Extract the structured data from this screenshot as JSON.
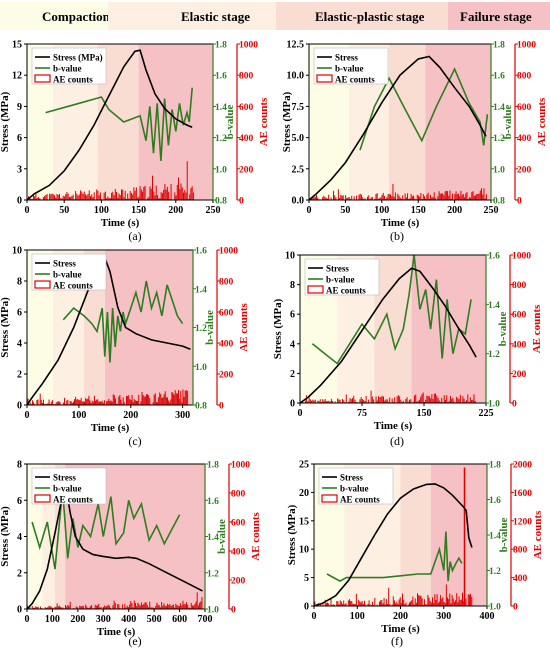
{
  "legend_top": {
    "items": [
      {
        "label": "Compaction stage",
        "color": "#fdfde6"
      },
      {
        "label": "Elastic stage",
        "color": "#fdf0e2"
      },
      {
        "label": "Elastic-plastic stage",
        "color": "#f9dcd2"
      },
      {
        "label": "Failure stage",
        "color": "#f5c1c4"
      }
    ]
  },
  "colors": {
    "stress": "#000000",
    "bvalue": "#2e7d1f",
    "ae": "#e00000",
    "axis_b": "#2e7d1f",
    "axis_ae": "#e00000"
  },
  "chart_data": [
    {
      "panel": "(a)",
      "type": "line",
      "xlabel": "Time (s)",
      "ylabel": "Stress (MPa)",
      "y2label": "b-value",
      "y3label": "AE counts",
      "xlim": [
        0,
        250
      ],
      "xticks": [
        0,
        50,
        100,
        150,
        200,
        250
      ],
      "ylim": [
        0,
        15
      ],
      "yticks": [
        0,
        3,
        6,
        9,
        12,
        15
      ],
      "y2lim": [
        0.8,
        1.8
      ],
      "y2ticks": [
        0.8,
        1.0,
        1.2,
        1.4,
        1.6,
        1.8
      ],
      "y3lim": [
        0,
        1000
      ],
      "y3ticks": [
        0,
        200,
        400,
        600,
        800,
        1000
      ],
      "legend": [
        "Stress (MPa)",
        "b-value",
        "AE counts"
      ],
      "stages": [
        [
          0,
          35
        ],
        [
          35,
          95
        ],
        [
          95,
          150
        ],
        [
          150,
          250
        ]
      ],
      "ae_end": 225,
      "ae_amp": 90,
      "stress": {
        "x": [
          0,
          10,
          30,
          50,
          70,
          90,
          110,
          130,
          145,
          152,
          160,
          172,
          185,
          200,
          215,
          222
        ],
        "y": [
          0,
          0.6,
          1.4,
          2.8,
          4.8,
          7.2,
          10,
          12.8,
          14.3,
          14.4,
          12.5,
          10.2,
          8.8,
          7.8,
          7.2,
          7.0
        ]
      },
      "bvalue": {
        "x": [
          25,
          70,
          100,
          110,
          130,
          152,
          160,
          165,
          170,
          175,
          180,
          185,
          190,
          195,
          200,
          205,
          210,
          215,
          218,
          222
        ],
        "y": [
          1.36,
          1.42,
          1.46,
          1.38,
          1.3,
          1.34,
          1.18,
          1.4,
          1.1,
          1.42,
          1.05,
          1.45,
          1.15,
          1.38,
          1.24,
          1.42,
          1.28,
          1.36,
          1.3,
          1.52
        ]
      }
    },
    {
      "panel": "(b)",
      "type": "line",
      "xlabel": "Time (s)",
      "ylabel": "Stress (MPa)",
      "y2label": "b-value",
      "y3label": "AE counts",
      "xlim": [
        0,
        250
      ],
      "xticks": [
        0,
        50,
        100,
        150,
        200,
        250
      ],
      "ylim": [
        0,
        12.5
      ],
      "yticks": [
        0.0,
        2.5,
        5.0,
        7.5,
        10.0,
        12.5
      ],
      "y2lim": [
        0.8,
        1.8
      ],
      "y2ticks": [
        0.8,
        1.0,
        1.2,
        1.4,
        1.6,
        1.8
      ],
      "y3lim": [
        0,
        1000
      ],
      "y3ticks": [
        0,
        200,
        400,
        600,
        800,
        1000
      ],
      "legend": [
        "Stress",
        "b-value",
        "AE counts"
      ],
      "stages": [
        [
          0,
          55
        ],
        [
          55,
          110
        ],
        [
          110,
          160
        ],
        [
          160,
          250
        ]
      ],
      "ae_end": 245,
      "ae_amp": 60,
      "stress": {
        "x": [
          0,
          10,
          30,
          50,
          75,
          100,
          125,
          150,
          165,
          180,
          200,
          220,
          235,
          243
        ],
        "y": [
          0,
          0.5,
          1.6,
          3.0,
          5.3,
          7.8,
          10.0,
          11.3,
          11.5,
          10.6,
          9.0,
          7.5,
          6.0,
          5.1
        ]
      },
      "bvalue": {
        "x": [
          70,
          90,
          110,
          130,
          155,
          175,
          200,
          220,
          235,
          240,
          245
        ],
        "y": [
          1.12,
          1.4,
          1.58,
          1.4,
          1.18,
          1.4,
          1.64,
          1.42,
          1.3,
          1.15,
          1.35
        ]
      }
    },
    {
      "panel": "(c)",
      "type": "line",
      "xlabel": "Time (s)",
      "ylabel": "Stress (MPa)",
      "y2label": "b-value",
      "y3label": "AE counts",
      "xlim": [
        0,
        320
      ],
      "xticks": [
        0,
        100,
        200,
        300
      ],
      "ylim": [
        0,
        10
      ],
      "yticks": [
        0,
        2,
        4,
        6,
        8,
        10
      ],
      "y2lim": [
        0.8,
        1.6
      ],
      "y2ticks": [
        0.8,
        1.0,
        1.2,
        1.4,
        1.6
      ],
      "y3lim": [
        0,
        1000
      ],
      "y3ticks": [
        0,
        200,
        400,
        600,
        800,
        1000
      ],
      "legend": [
        "Stress",
        "b-value",
        "AE counts"
      ],
      "stages": [
        [
          0,
          50
        ],
        [
          50,
          110
        ],
        [
          110,
          150
        ],
        [
          150,
          320
        ]
      ],
      "ae_end": 310,
      "ae_amp": 80,
      "stress": {
        "x": [
          0,
          10,
          30,
          60,
          90,
          120,
          140,
          150,
          160,
          175,
          190,
          210,
          240,
          270,
          300,
          315
        ],
        "y": [
          0,
          0.5,
          1.4,
          2.9,
          5.0,
          7.6,
          9.3,
          9.5,
          8.6,
          6.3,
          5.0,
          4.6,
          4.2,
          4.0,
          3.8,
          3.6
        ]
      },
      "bvalue": {
        "x": [
          70,
          90,
          110,
          125,
          135,
          145,
          150,
          155,
          160,
          165,
          170,
          175,
          180,
          185,
          190,
          200,
          210,
          220,
          230,
          240,
          250,
          260,
          270,
          280,
          290,
          300
        ],
        "y": [
          1.24,
          1.3,
          1.26,
          1.22,
          1.18,
          1.3,
          1.05,
          1.28,
          1.02,
          1.3,
          1.1,
          1.26,
          1.18,
          1.28,
          1.22,
          1.3,
          1.38,
          1.28,
          1.44,
          1.3,
          1.38,
          1.26,
          1.42,
          1.34,
          1.26,
          1.22
        ]
      }
    },
    {
      "panel": "(d)",
      "type": "line",
      "xlabel": "Time (s)",
      "ylabel": "Stress (MPa)",
      "y2label": "b-value",
      "y3label": "AE counts",
      "xlim": [
        0,
        225
      ],
      "xticks": [
        0,
        75,
        150,
        225
      ],
      "ylim": [
        0,
        10
      ],
      "yticks": [
        0,
        2,
        4,
        6,
        8,
        10
      ],
      "y2lim": [
        1.0,
        1.6
      ],
      "y2ticks": [
        1.0,
        1.2,
        1.4,
        1.6
      ],
      "y3lim": [
        0,
        1000
      ],
      "y3ticks": [
        0,
        200,
        400,
        600,
        800,
        1000
      ],
      "legend": [
        "Stress",
        "b-value",
        "AE counts"
      ],
      "stages": [
        [
          0,
          45
        ],
        [
          45,
          90
        ],
        [
          90,
          135
        ],
        [
          135,
          225
        ]
      ],
      "ae_end": 215,
      "ae_amp": 60,
      "stress": {
        "x": [
          0,
          10,
          25,
          50,
          75,
          100,
          120,
          135,
          145,
          160,
          175,
          190,
          205,
          213
        ],
        "y": [
          0,
          0.4,
          1.2,
          2.8,
          4.9,
          7.0,
          8.4,
          9.1,
          8.9,
          7.8,
          6.6,
          5.2,
          3.9,
          3.1
        ]
      },
      "bvalue": {
        "x": [
          15,
          30,
          45,
          60,
          75,
          90,
          105,
          115,
          125,
          132,
          138,
          145,
          152,
          158,
          165,
          172,
          178,
          185,
          192,
          200,
          207
        ],
        "y": [
          1.24,
          1.2,
          1.16,
          1.24,
          1.32,
          1.26,
          1.36,
          1.22,
          1.3,
          1.44,
          1.6,
          1.38,
          1.46,
          1.3,
          1.5,
          1.18,
          1.42,
          1.2,
          1.3,
          1.28,
          1.42
        ]
      }
    },
    {
      "panel": "(e)",
      "type": "line",
      "xlabel": "Time (s)",
      "ylabel": "Stress (MPa)",
      "y2label": "b-value",
      "y3label": "AE counts",
      "xlim": [
        0,
        700
      ],
      "xticks": [
        0,
        100,
        200,
        300,
        400,
        500,
        600,
        700
      ],
      "ylim": [
        0,
        8
      ],
      "yticks": [
        0,
        2,
        4,
        6,
        8
      ],
      "y2lim": [
        1.0,
        1.8
      ],
      "y2ticks": [
        1.0,
        1.2,
        1.4,
        1.6,
        1.8
      ],
      "y3lim": [
        0,
        1000
      ],
      "y3ticks": [
        0,
        200,
        400,
        600,
        800,
        1000
      ],
      "legend": [
        "Stress",
        "b-value",
        "AE counts"
      ],
      "stages": [
        [
          0,
          60
        ],
        [
          60,
          110
        ],
        [
          110,
          150
        ],
        [
          150,
          700
        ]
      ],
      "ae_end": 690,
      "ae_amp": 50,
      "stress": {
        "x": [
          0,
          20,
          50,
          80,
          110,
          140,
          155,
          170,
          190,
          220,
          260,
          300,
          350,
          400,
          430,
          480,
          550,
          620,
          690
        ],
        "y": [
          0,
          0.3,
          1.0,
          2.2,
          4.2,
          6.3,
          6.6,
          5.3,
          4.0,
          3.3,
          3.0,
          2.9,
          2.8,
          2.85,
          2.8,
          2.5,
          2.0,
          1.5,
          1.0
        ]
      },
      "bvalue": {
        "x": [
          20,
          50,
          80,
          110,
          140,
          160,
          180,
          200,
          220,
          250,
          280,
          300,
          330,
          350,
          380,
          400,
          420,
          450,
          480,
          510,
          540,
          570,
          600
        ],
        "y": [
          1.48,
          1.34,
          1.48,
          1.22,
          1.66,
          1.28,
          1.5,
          1.34,
          1.46,
          1.4,
          1.58,
          1.4,
          1.62,
          1.36,
          1.42,
          1.6,
          1.5,
          1.58,
          1.38,
          1.46,
          1.36,
          1.44,
          1.52
        ]
      }
    },
    {
      "panel": "(f)",
      "type": "line",
      "xlabel": "Time (s)",
      "ylabel": "Stress (MPa)",
      "y2label": "b-value",
      "y3label": "AE counts",
      "xlim": [
        0,
        400
      ],
      "xticks": [
        0,
        100,
        200,
        300,
        400
      ],
      "ylim": [
        0,
        25
      ],
      "yticks": [
        0,
        5,
        10,
        15,
        20,
        25
      ],
      "y2lim": [
        1.0,
        1.8
      ],
      "y2ticks": [
        1.0,
        1.2,
        1.4,
        1.6,
        1.8
      ],
      "y3lim": [
        0,
        2000
      ],
      "y3ticks": [
        0,
        400,
        800,
        1200,
        1600,
        2000
      ],
      "legend": [
        "Stress",
        "b-value",
        "AE counts"
      ],
      "stages": [
        [
          0,
          70
        ],
        [
          70,
          200
        ],
        [
          200,
          270
        ],
        [
          270,
          400
        ]
      ],
      "ae_end": 365,
      "ae_amp": 80,
      "ae_spike": {
        "x": 348,
        "y": 1950
      },
      "stress": {
        "x": [
          0,
          20,
          50,
          80,
          110,
          140,
          170,
          200,
          230,
          260,
          280,
          300,
          320,
          335,
          345,
          352,
          358,
          365
        ],
        "y": [
          0,
          0.5,
          1.8,
          4.5,
          8.5,
          12.5,
          16.2,
          19.0,
          20.6,
          21.4,
          21.5,
          20.8,
          19.5,
          18.3,
          17.5,
          16.8,
          12.0,
          10.3
        ]
      },
      "bvalue": {
        "x": [
          30,
          60,
          75,
          100,
          130,
          160,
          200,
          240,
          270,
          290,
          300,
          305,
          310,
          315,
          320,
          328,
          335,
          342
        ],
        "y": [
          1.18,
          1.14,
          1.16,
          1.16,
          1.16,
          1.16,
          1.17,
          1.18,
          1.18,
          1.32,
          1.2,
          1.42,
          1.14,
          1.25,
          1.2,
          1.24,
          1.27,
          1.24
        ]
      }
    }
  ]
}
